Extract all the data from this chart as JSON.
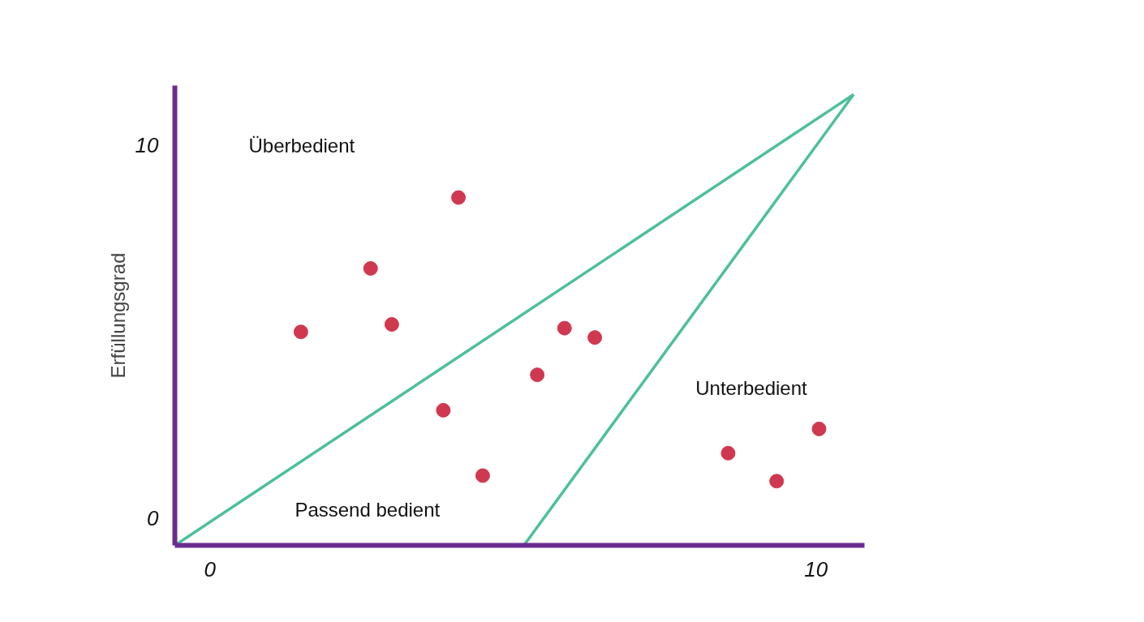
{
  "chart_data": {
    "type": "scatter",
    "ylabel": "Erfüllungsgrad",
    "xlim": [
      -0.58,
      10.8
    ],
    "ylim": [
      -0.72,
      11.6
    ],
    "xticks": [
      0,
      10
    ],
    "yticks": [
      0,
      10
    ],
    "grid": false,
    "series": [
      {
        "color": "#d0384f",
        "marker": "circle",
        "x": [
          1.5,
          2.65,
          3.0,
          4.1,
          3.85,
          4.5,
          5.4,
          5.85,
          6.35,
          8.55,
          9.35,
          10.05
        ],
        "values": [
          5.0,
          6.7,
          5.2,
          8.6,
          2.9,
          1.15,
          3.85,
          5.1,
          4.85,
          1.75,
          1.0,
          2.4
        ]
      },
      {
        "type": "line",
        "color": "#4dbf9b",
        "x": [
          -0.58,
          10.62
        ],
        "values": [
          -0.72,
          11.36
        ]
      },
      {
        "type": "line",
        "color": "#4dbf9b",
        "x": [
          5.18,
          10.62
        ],
        "values": [
          -0.72,
          11.36
        ]
      }
    ],
    "annotations": [
      "Überbedient",
      "Passend bedient",
      "Unterbedient"
    ]
  }
}
